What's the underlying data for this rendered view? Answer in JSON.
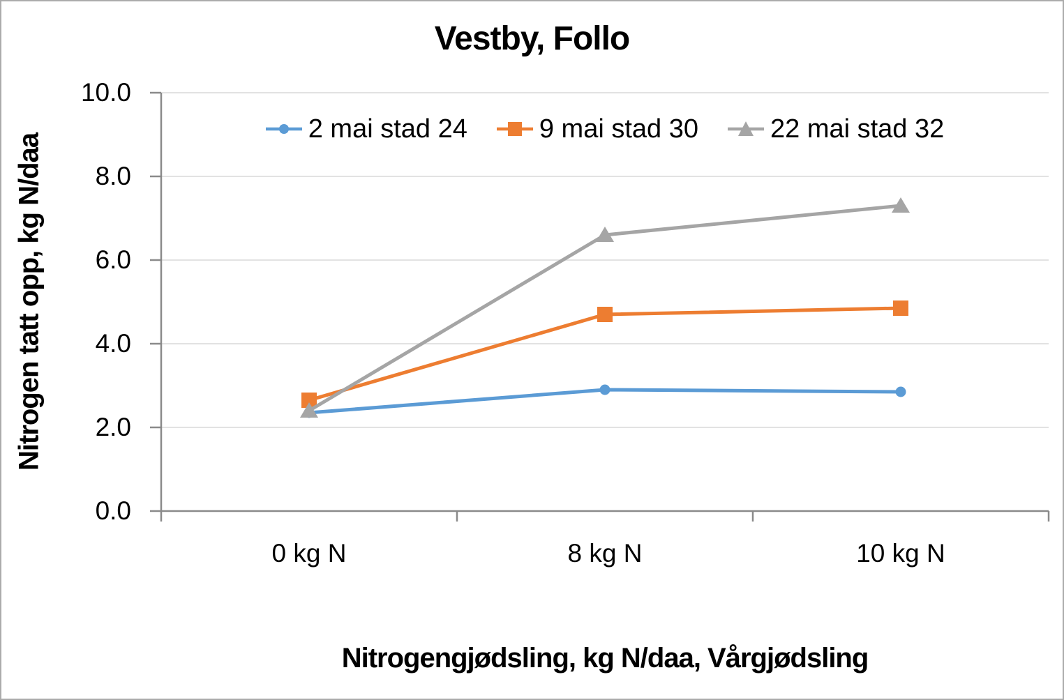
{
  "chart_data": {
    "type": "line",
    "title": "Vestby, Follo",
    "xlabel": "Nitrogengjødsling, kg N/daa, Vårgjødsling",
    "ylabel": "Nitrogen tatt opp, kg N/daa",
    "categories": [
      "0 kg N",
      "8 kg N",
      "10 kg N"
    ],
    "series": [
      {
        "name": "2 mai stad 24",
        "marker": "circle",
        "color": "#5B9BD5",
        "values": [
          2.35,
          2.9,
          2.85
        ]
      },
      {
        "name": "9 mai stad 30",
        "marker": "square",
        "color": "#ED7D31",
        "values": [
          2.65,
          4.7,
          4.85
        ]
      },
      {
        "name": "22 mai stad 32",
        "marker": "triangle",
        "color": "#A5A5A5",
        "values": [
          2.4,
          6.6,
          7.3
        ]
      }
    ],
    "ylim": [
      0,
      10
    ],
    "y_ticks": [
      {
        "label": "0.0",
        "value": 0
      },
      {
        "label": "2.0",
        "value": 2
      },
      {
        "label": "4.0",
        "value": 4
      },
      {
        "label": "6.0",
        "value": 6
      },
      {
        "label": "8.0",
        "value": 8
      },
      {
        "label": "10.0",
        "value": 10
      }
    ],
    "grid": "horizontal",
    "legend_position": "top",
    "colors": {
      "gridline": "#d9d9d9",
      "axis": "#8a8a8a",
      "text": "#000000",
      "background": "#ffffff"
    }
  }
}
